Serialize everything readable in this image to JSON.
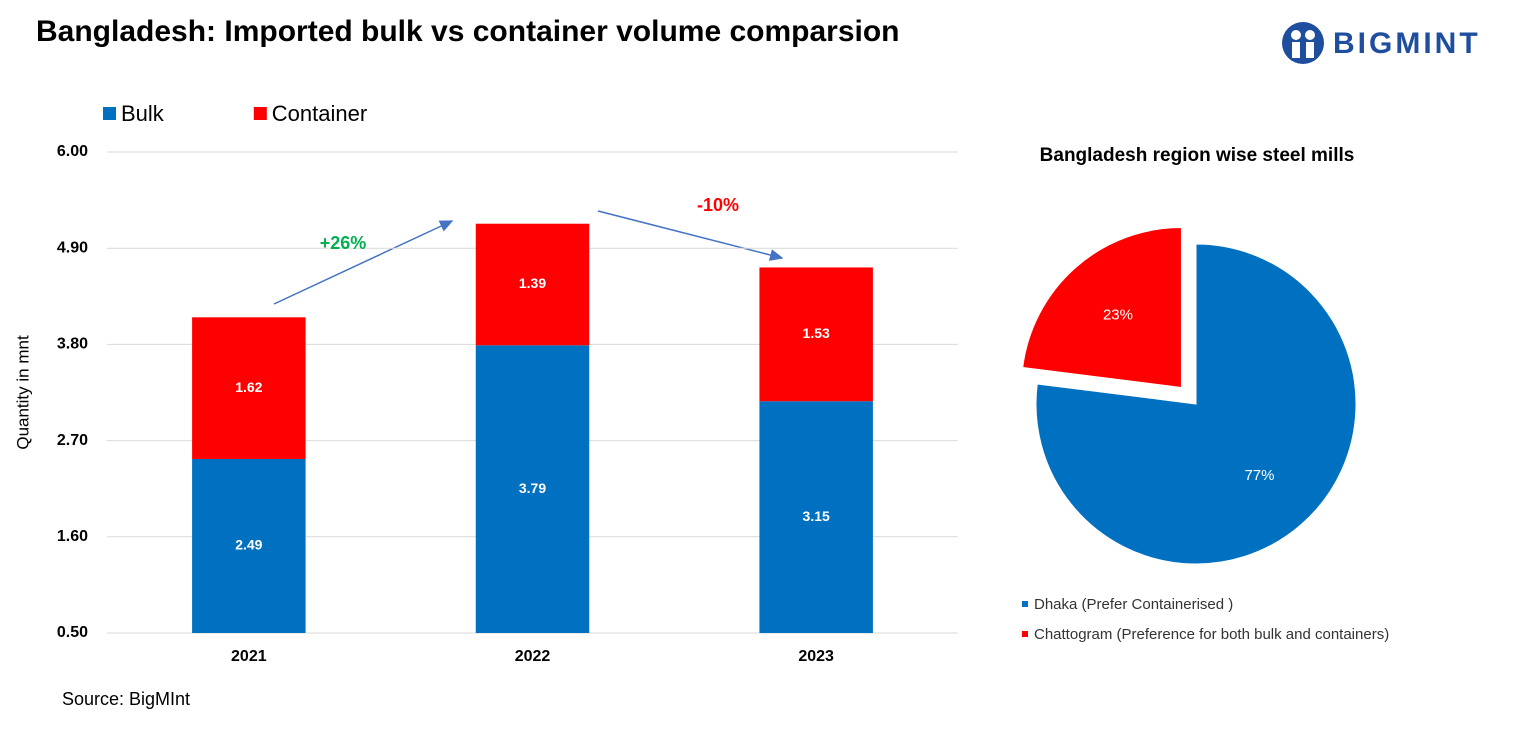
{
  "title": "Bangladesh: Imported bulk vs container volume comparsion",
  "logo": "BIGMINT",
  "source": "Source: BigMInt",
  "chart_data": [
    {
      "type": "stacked-bar",
      "y_label": "Quantity in mnt",
      "categories": [
        "2021",
        "2022",
        "2023"
      ],
      "series": [
        {
          "name": "Bulk",
          "color": "#0070c0",
          "values": [
            2.49,
            3.79,
            3.15
          ]
        },
        {
          "name": "Container",
          "color": "#ff0000",
          "values": [
            1.62,
            1.39,
            1.53
          ]
        }
      ],
      "ylim": [
        0.5,
        6.0
      ],
      "yticks": [
        {
          "value": 0.5,
          "label": "0.50"
        },
        {
          "value": 1.6,
          "label": "1.60"
        },
        {
          "value": 2.7,
          "label": "2.70"
        },
        {
          "value": 3.8,
          "label": "3.80"
        },
        {
          "value": 4.9,
          "label": "4.90"
        },
        {
          "value": 6.0,
          "label": "6.00"
        }
      ],
      "grid": true,
      "legend": "top-left",
      "annotations": [
        {
          "text": "+26%",
          "color": "#00b050"
        },
        {
          "text": "-10%",
          "color": "#ff0000"
        }
      ]
    },
    {
      "type": "pie",
      "title": "Bangladesh region wise steel mills",
      "categories": [
        "Dhaka (Prefer Containerised )",
        "Chattogram (Preference for both bulk and containers)"
      ],
      "values": [
        77,
        23
      ],
      "value_labels": [
        "77%",
        "23%"
      ],
      "colors": [
        "#0070c0",
        "#ff0000"
      ],
      "explode": [
        false,
        true
      ],
      "legend": "bottom"
    }
  ]
}
